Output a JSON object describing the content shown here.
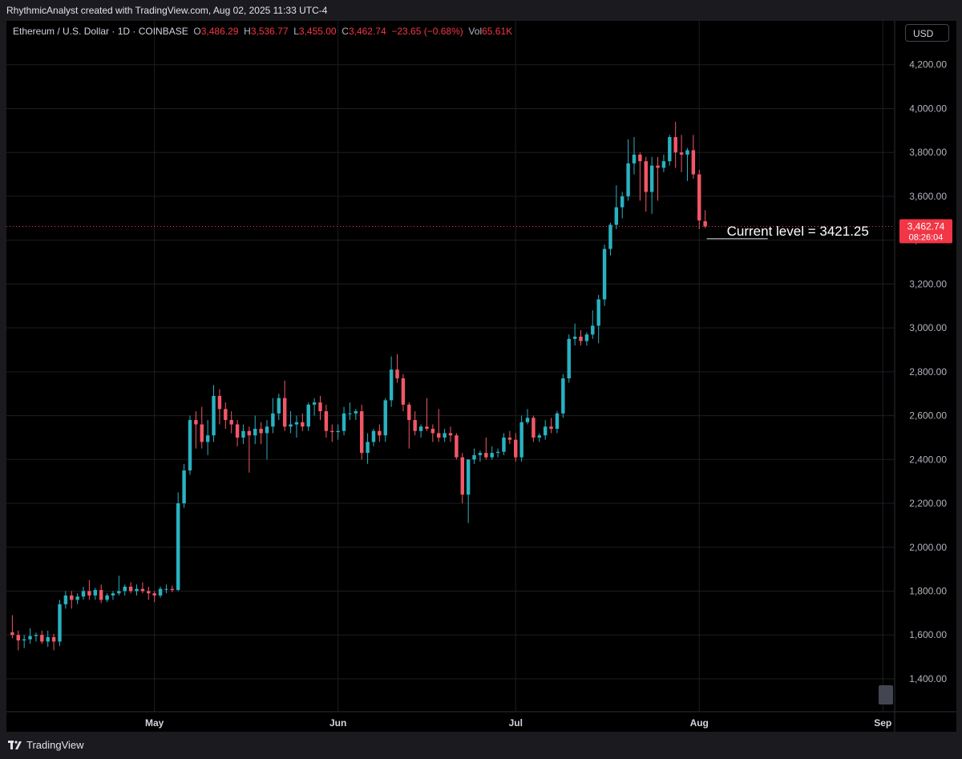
{
  "header": {
    "text": "RhythmicAnalyst created with TradingView.com, Aug 02, 2025 11:33 UTC-4"
  },
  "legend": {
    "symbol": "Ethereum / U.S. Dollar · 1D · COINBASE",
    "o_label": "O",
    "o_value": "3,486.29",
    "h_label": "H",
    "h_value": "3,536.77",
    "l_label": "L",
    "l_value": "3,455.00",
    "c_label": "C",
    "c_value": "3,462.74",
    "change": "−23.65 (−0.68%)",
    "vol_label": "Vol",
    "vol_value": "65.61K"
  },
  "currency_button": "USD",
  "footer": {
    "logo_text": "TradingView",
    "logo_icon": "tradingview-logo-icon"
  },
  "colors": {
    "up": "#2ab1c1",
    "down": "#f25767",
    "background": "#000000",
    "price_line": "#f23645",
    "grid": "#1e1e22"
  },
  "chart_data": {
    "type": "candlestick",
    "series_name": "Ethereum / U.S. Dollar",
    "interval": "1D",
    "y_axis": {
      "ticks": [
        1400,
        1600,
        1800,
        2000,
        2200,
        2400,
        2600,
        2800,
        3000,
        3200,
        3400,
        3600,
        3800,
        4000,
        4200
      ],
      "tick_labels": [
        "1,400.00",
        "1,600.00",
        "1,800.00",
        "2,000.00",
        "2,200.00",
        "2,400.00",
        "2,600.00",
        "2,800.00",
        "3,000.00",
        "3,200.00",
        "3,400.00",
        "3,600.00",
        "3,800.00",
        "4,000.00",
        "4,200.00"
      ],
      "range": [
        1250,
        4400
      ]
    },
    "x_axis": {
      "start_date": "2025-04-06",
      "end_date": "2025-09-03",
      "tick_labels": [
        {
          "date": "2025-05-01",
          "label": "May"
        },
        {
          "date": "2025-06-01",
          "label": "Jun"
        },
        {
          "date": "2025-07-01",
          "label": "Jul"
        },
        {
          "date": "2025-08-01",
          "label": "Aug"
        },
        {
          "date": "2025-09-01",
          "label": "Sep"
        }
      ]
    },
    "current_price": {
      "value": 3462.74,
      "label": "3,462.74",
      "countdown": "08:26:04"
    },
    "annotation": {
      "text": "Current level =  3421.25",
      "value": 3421.25
    },
    "candles": [
      {
        "date": "2025-04-07",
        "o": 1612,
        "h": 1690,
        "l": 1585,
        "c": 1600
      },
      {
        "date": "2025-04-08",
        "o": 1600,
        "h": 1620,
        "l": 1530,
        "c": 1575
      },
      {
        "date": "2025-04-09",
        "o": 1575,
        "h": 1600,
        "l": 1540,
        "c": 1580
      },
      {
        "date": "2025-04-10",
        "o": 1580,
        "h": 1630,
        "l": 1560,
        "c": 1595
      },
      {
        "date": "2025-04-11",
        "o": 1595,
        "h": 1610,
        "l": 1570,
        "c": 1600
      },
      {
        "date": "2025-04-12",
        "o": 1600,
        "h": 1620,
        "l": 1560,
        "c": 1570
      },
      {
        "date": "2025-04-13",
        "o": 1570,
        "h": 1620,
        "l": 1545,
        "c": 1590
      },
      {
        "date": "2025-04-14",
        "o": 1590,
        "h": 1605,
        "l": 1530,
        "c": 1570
      },
      {
        "date": "2025-04-15",
        "o": 1570,
        "h": 1760,
        "l": 1550,
        "c": 1740
      },
      {
        "date": "2025-04-16",
        "o": 1740,
        "h": 1800,
        "l": 1720,
        "c": 1780
      },
      {
        "date": "2025-04-17",
        "o": 1780,
        "h": 1800,
        "l": 1720,
        "c": 1760
      },
      {
        "date": "2025-04-18",
        "o": 1760,
        "h": 1790,
        "l": 1740,
        "c": 1775
      },
      {
        "date": "2025-04-19",
        "o": 1775,
        "h": 1820,
        "l": 1760,
        "c": 1800
      },
      {
        "date": "2025-04-20",
        "o": 1800,
        "h": 1850,
        "l": 1760,
        "c": 1780
      },
      {
        "date": "2025-04-21",
        "o": 1780,
        "h": 1815,
        "l": 1760,
        "c": 1805
      },
      {
        "date": "2025-04-22",
        "o": 1805,
        "h": 1830,
        "l": 1745,
        "c": 1760
      },
      {
        "date": "2025-04-23",
        "o": 1760,
        "h": 1790,
        "l": 1750,
        "c": 1780
      },
      {
        "date": "2025-04-24",
        "o": 1780,
        "h": 1800,
        "l": 1760,
        "c": 1790
      },
      {
        "date": "2025-04-25",
        "o": 1790,
        "h": 1870,
        "l": 1780,
        "c": 1800
      },
      {
        "date": "2025-04-26",
        "o": 1800,
        "h": 1830,
        "l": 1780,
        "c": 1820
      },
      {
        "date": "2025-04-27",
        "o": 1820,
        "h": 1840,
        "l": 1790,
        "c": 1800
      },
      {
        "date": "2025-04-28",
        "o": 1800,
        "h": 1830,
        "l": 1780,
        "c": 1810
      },
      {
        "date": "2025-04-29",
        "o": 1810,
        "h": 1840,
        "l": 1790,
        "c": 1800
      },
      {
        "date": "2025-04-30",
        "o": 1800,
        "h": 1820,
        "l": 1760,
        "c": 1790
      },
      {
        "date": "2025-05-01",
        "o": 1790,
        "h": 1800,
        "l": 1750,
        "c": 1780
      },
      {
        "date": "2025-05-02",
        "o": 1780,
        "h": 1820,
        "l": 1770,
        "c": 1810
      },
      {
        "date": "2025-05-03",
        "o": 1810,
        "h": 1830,
        "l": 1790,
        "c": 1810
      },
      {
        "date": "2025-05-04",
        "o": 1810,
        "h": 1825,
        "l": 1795,
        "c": 1805
      },
      {
        "date": "2025-05-05",
        "o": 1805,
        "h": 2250,
        "l": 1800,
        "c": 2200
      },
      {
        "date": "2025-05-06",
        "o": 2200,
        "h": 2380,
        "l": 2180,
        "c": 2350
      },
      {
        "date": "2025-05-07",
        "o": 2350,
        "h": 2600,
        "l": 2330,
        "c": 2580
      },
      {
        "date": "2025-05-08",
        "o": 2580,
        "h": 2620,
        "l": 2450,
        "c": 2560
      },
      {
        "date": "2025-05-09",
        "o": 2560,
        "h": 2640,
        "l": 2450,
        "c": 2480
      },
      {
        "date": "2025-05-10",
        "o": 2480,
        "h": 2580,
        "l": 2420,
        "c": 2510
      },
      {
        "date": "2025-05-11",
        "o": 2510,
        "h": 2740,
        "l": 2480,
        "c": 2690
      },
      {
        "date": "2025-05-12",
        "o": 2690,
        "h": 2720,
        "l": 2560,
        "c": 2630
      },
      {
        "date": "2025-05-13",
        "o": 2630,
        "h": 2660,
        "l": 2540,
        "c": 2580
      },
      {
        "date": "2025-05-14",
        "o": 2580,
        "h": 2620,
        "l": 2520,
        "c": 2560
      },
      {
        "date": "2025-05-15",
        "o": 2560,
        "h": 2580,
        "l": 2460,
        "c": 2500
      },
      {
        "date": "2025-05-16",
        "o": 2500,
        "h": 2560,
        "l": 2470,
        "c": 2530
      },
      {
        "date": "2025-05-17",
        "o": 2530,
        "h": 2550,
        "l": 2340,
        "c": 2510
      },
      {
        "date": "2025-05-18",
        "o": 2510,
        "h": 2600,
        "l": 2470,
        "c": 2540
      },
      {
        "date": "2025-05-19",
        "o": 2540,
        "h": 2570,
        "l": 2470,
        "c": 2520
      },
      {
        "date": "2025-05-20",
        "o": 2520,
        "h": 2580,
        "l": 2400,
        "c": 2550
      },
      {
        "date": "2025-05-21",
        "o": 2550,
        "h": 2680,
        "l": 2520,
        "c": 2610
      },
      {
        "date": "2025-05-22",
        "o": 2610,
        "h": 2700,
        "l": 2580,
        "c": 2680
      },
      {
        "date": "2025-05-23",
        "o": 2680,
        "h": 2760,
        "l": 2530,
        "c": 2550
      },
      {
        "date": "2025-05-24",
        "o": 2550,
        "h": 2620,
        "l": 2520,
        "c": 2560
      },
      {
        "date": "2025-05-25",
        "o": 2560,
        "h": 2600,
        "l": 2500,
        "c": 2570
      },
      {
        "date": "2025-05-26",
        "o": 2570,
        "h": 2610,
        "l": 2530,
        "c": 2550
      },
      {
        "date": "2025-05-27",
        "o": 2550,
        "h": 2660,
        "l": 2530,
        "c": 2650
      },
      {
        "date": "2025-05-28",
        "o": 2650,
        "h": 2680,
        "l": 2600,
        "c": 2660
      },
      {
        "date": "2025-05-29",
        "o": 2660,
        "h": 2690,
        "l": 2580,
        "c": 2620
      },
      {
        "date": "2025-05-30",
        "o": 2620,
        "h": 2650,
        "l": 2500,
        "c": 2530
      },
      {
        "date": "2025-05-31",
        "o": 2530,
        "h": 2560,
        "l": 2480,
        "c": 2525
      },
      {
        "date": "2025-06-01",
        "o": 2525,
        "h": 2560,
        "l": 2490,
        "c": 2530
      },
      {
        "date": "2025-06-02",
        "o": 2530,
        "h": 2640,
        "l": 2510,
        "c": 2610
      },
      {
        "date": "2025-06-03",
        "o": 2610,
        "h": 2660,
        "l": 2580,
        "c": 2610
      },
      {
        "date": "2025-06-04",
        "o": 2610,
        "h": 2630,
        "l": 2580,
        "c": 2620
      },
      {
        "date": "2025-06-05",
        "o": 2620,
        "h": 2650,
        "l": 2400,
        "c": 2430
      },
      {
        "date": "2025-06-06",
        "o": 2430,
        "h": 2520,
        "l": 2380,
        "c": 2480
      },
      {
        "date": "2025-06-07",
        "o": 2480,
        "h": 2540,
        "l": 2460,
        "c": 2530
      },
      {
        "date": "2025-06-08",
        "o": 2530,
        "h": 2560,
        "l": 2480,
        "c": 2510
      },
      {
        "date": "2025-06-09",
        "o": 2510,
        "h": 2680,
        "l": 2480,
        "c": 2670
      },
      {
        "date": "2025-06-10",
        "o": 2670,
        "h": 2870,
        "l": 2640,
        "c": 2810
      },
      {
        "date": "2025-06-11",
        "o": 2810,
        "h": 2880,
        "l": 2750,
        "c": 2770
      },
      {
        "date": "2025-06-12",
        "o": 2770,
        "h": 2790,
        "l": 2620,
        "c": 2650
      },
      {
        "date": "2025-06-13",
        "o": 2650,
        "h": 2660,
        "l": 2450,
        "c": 2580
      },
      {
        "date": "2025-06-14",
        "o": 2580,
        "h": 2620,
        "l": 2510,
        "c": 2530
      },
      {
        "date": "2025-06-15",
        "o": 2530,
        "h": 2560,
        "l": 2500,
        "c": 2550
      },
      {
        "date": "2025-06-16",
        "o": 2550,
        "h": 2680,
        "l": 2530,
        "c": 2540
      },
      {
        "date": "2025-06-17",
        "o": 2540,
        "h": 2560,
        "l": 2480,
        "c": 2520
      },
      {
        "date": "2025-06-18",
        "o": 2520,
        "h": 2630,
        "l": 2480,
        "c": 2500
      },
      {
        "date": "2025-06-19",
        "o": 2500,
        "h": 2540,
        "l": 2480,
        "c": 2520
      },
      {
        "date": "2025-06-20",
        "o": 2520,
        "h": 2550,
        "l": 2480,
        "c": 2510
      },
      {
        "date": "2025-06-21",
        "o": 2510,
        "h": 2520,
        "l": 2400,
        "c": 2410
      },
      {
        "date": "2025-06-22",
        "o": 2410,
        "h": 2430,
        "l": 2200,
        "c": 2240
      },
      {
        "date": "2025-06-23",
        "o": 2240,
        "h": 2400,
        "l": 2110,
        "c": 2400
      },
      {
        "date": "2025-06-24",
        "o": 2400,
        "h": 2450,
        "l": 2380,
        "c": 2420
      },
      {
        "date": "2025-06-25",
        "o": 2420,
        "h": 2440,
        "l": 2390,
        "c": 2430
      },
      {
        "date": "2025-06-26",
        "o": 2430,
        "h": 2500,
        "l": 2400,
        "c": 2410
      },
      {
        "date": "2025-06-27",
        "o": 2410,
        "h": 2460,
        "l": 2400,
        "c": 2430
      },
      {
        "date": "2025-06-28",
        "o": 2430,
        "h": 2450,
        "l": 2410,
        "c": 2435
      },
      {
        "date": "2025-06-29",
        "o": 2435,
        "h": 2520,
        "l": 2420,
        "c": 2500
      },
      {
        "date": "2025-06-30",
        "o": 2500,
        "h": 2530,
        "l": 2470,
        "c": 2490
      },
      {
        "date": "2025-07-01",
        "o": 2490,
        "h": 2520,
        "l": 2390,
        "c": 2410
      },
      {
        "date": "2025-07-02",
        "o": 2410,
        "h": 2600,
        "l": 2390,
        "c": 2570
      },
      {
        "date": "2025-07-03",
        "o": 2570,
        "h": 2630,
        "l": 2560,
        "c": 2590
      },
      {
        "date": "2025-07-04",
        "o": 2590,
        "h": 2600,
        "l": 2480,
        "c": 2500
      },
      {
        "date": "2025-07-05",
        "o": 2500,
        "h": 2520,
        "l": 2480,
        "c": 2510
      },
      {
        "date": "2025-07-06",
        "o": 2510,
        "h": 2580,
        "l": 2490,
        "c": 2550
      },
      {
        "date": "2025-07-07",
        "o": 2550,
        "h": 2590,
        "l": 2520,
        "c": 2540
      },
      {
        "date": "2025-07-08",
        "o": 2540,
        "h": 2620,
        "l": 2520,
        "c": 2610
      },
      {
        "date": "2025-07-09",
        "o": 2610,
        "h": 2790,
        "l": 2590,
        "c": 2770
      },
      {
        "date": "2025-07-10",
        "o": 2770,
        "h": 2970,
        "l": 2750,
        "c": 2950
      },
      {
        "date": "2025-07-11",
        "o": 2950,
        "h": 3020,
        "l": 2920,
        "c": 2960
      },
      {
        "date": "2025-07-12",
        "o": 2960,
        "h": 2990,
        "l": 2920,
        "c": 2940
      },
      {
        "date": "2025-07-13",
        "o": 2940,
        "h": 2980,
        "l": 2920,
        "c": 2970
      },
      {
        "date": "2025-07-14",
        "o": 2970,
        "h": 3080,
        "l": 2950,
        "c": 3010
      },
      {
        "date": "2025-07-15",
        "o": 3010,
        "h": 3150,
        "l": 2930,
        "c": 3130
      },
      {
        "date": "2025-07-16",
        "o": 3130,
        "h": 3380,
        "l": 3100,
        "c": 3360
      },
      {
        "date": "2025-07-17",
        "o": 3360,
        "h": 3480,
        "l": 3330,
        "c": 3470
      },
      {
        "date": "2025-07-18",
        "o": 3470,
        "h": 3650,
        "l": 3450,
        "c": 3550
      },
      {
        "date": "2025-07-19",
        "o": 3550,
        "h": 3620,
        "l": 3500,
        "c": 3600
      },
      {
        "date": "2025-07-20",
        "o": 3600,
        "h": 3860,
        "l": 3580,
        "c": 3750
      },
      {
        "date": "2025-07-21",
        "o": 3750,
        "h": 3870,
        "l": 3700,
        "c": 3790
      },
      {
        "date": "2025-07-22",
        "o": 3790,
        "h": 3800,
        "l": 3580,
        "c": 3760
      },
      {
        "date": "2025-07-23",
        "o": 3760,
        "h": 3780,
        "l": 3530,
        "c": 3620
      },
      {
        "date": "2025-07-24",
        "o": 3620,
        "h": 3780,
        "l": 3520,
        "c": 3740
      },
      {
        "date": "2025-07-25",
        "o": 3740,
        "h": 3780,
        "l": 3580,
        "c": 3730
      },
      {
        "date": "2025-07-26",
        "o": 3730,
        "h": 3790,
        "l": 3710,
        "c": 3760
      },
      {
        "date": "2025-07-27",
        "o": 3760,
        "h": 3880,
        "l": 3740,
        "c": 3870
      },
      {
        "date": "2025-07-28",
        "o": 3870,
        "h": 3940,
        "l": 3730,
        "c": 3800
      },
      {
        "date": "2025-07-29",
        "o": 3800,
        "h": 3880,
        "l": 3710,
        "c": 3790
      },
      {
        "date": "2025-07-30",
        "o": 3790,
        "h": 3820,
        "l": 3670,
        "c": 3810
      },
      {
        "date": "2025-07-31",
        "o": 3810,
        "h": 3880,
        "l": 3680,
        "c": 3700
      },
      {
        "date": "2025-08-01",
        "o": 3700,
        "h": 3720,
        "l": 3450,
        "c": 3490
      },
      {
        "date": "2025-08-02",
        "o": 3486.29,
        "h": 3536.77,
        "l": 3455,
        "c": 3462.74
      }
    ]
  }
}
